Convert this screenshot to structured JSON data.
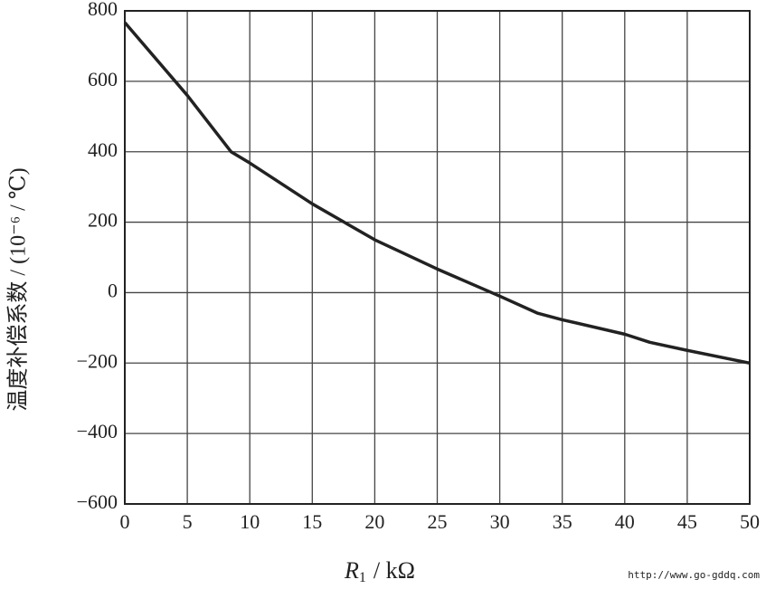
{
  "chart_data": {
    "type": "line",
    "x_label": {
      "symbol": "R",
      "subscript": "1",
      "unit": "/ kΩ"
    },
    "y_label": "温度补偿系数 / (10⁻⁶ / ℃)",
    "watermark": "http://www.go-gddq.com",
    "x": [
      0,
      5,
      8.5,
      10,
      15,
      20,
      25,
      30,
      33,
      35,
      40,
      42,
      45,
      50
    ],
    "series": [
      {
        "color": "#222222",
        "values": [
          767,
          560,
          400,
          368,
          252,
          150,
          67,
          -10,
          -58,
          -77,
          -118,
          -141,
          -164,
          -200
        ]
      }
    ],
    "xlim": [
      0,
      50
    ],
    "xticks": [
      0,
      5,
      10,
      15,
      20,
      25,
      30,
      35,
      40,
      45,
      50
    ],
    "ylim": [
      -600,
      800
    ],
    "yticks": [
      {
        "value": -600,
        "label": "−600"
      },
      {
        "value": -400,
        "label": "−400"
      },
      {
        "value": -200,
        "label": "−200"
      },
      0,
      200,
      400,
      600,
      800
    ],
    "grid": true
  }
}
